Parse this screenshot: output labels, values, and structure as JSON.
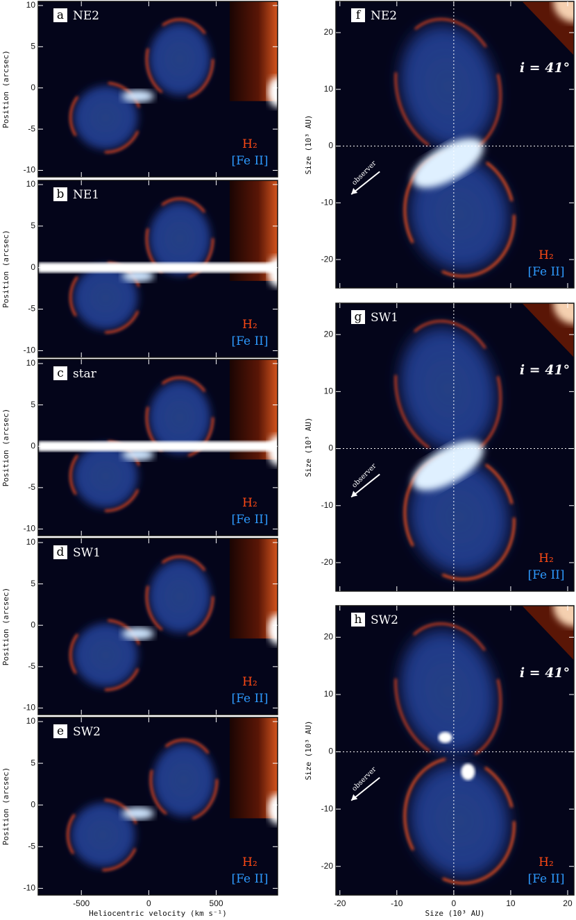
{
  "left_panels": {
    "y_label": "Position (arcsec)",
    "x_label": "Heliocentric velocity (km s⁻¹)",
    "xlim": [
      -820,
      955
    ],
    "ylim": [
      -10.8,
      10.5
    ],
    "xticks": [
      -500,
      0,
      500
    ],
    "yticks": [
      -10,
      -5,
      0,
      5,
      10
    ],
    "panels": [
      {
        "letter": "a",
        "name": "NE2"
      },
      {
        "letter": "b",
        "name": "NE1"
      },
      {
        "letter": "c",
        "name": "star"
      },
      {
        "letter": "d",
        "name": "SW1"
      },
      {
        "letter": "e",
        "name": "SW2"
      }
    ]
  },
  "right_panels": {
    "y_label": "Size (10³ AU)",
    "x_label": "Size (10³ AU)",
    "xlim": [
      -20.7,
      21.1
    ],
    "ylim": [
      -25,
      25.5
    ],
    "xticks": [
      -20,
      -10,
      0,
      10,
      20
    ],
    "yticks": [
      -20,
      -10,
      0,
      10,
      20
    ],
    "inclination": "i = 41°",
    "observer": "observer",
    "panels": [
      {
        "letter": "f",
        "name": "NE2"
      },
      {
        "letter": "g",
        "name": "SW1"
      },
      {
        "letter": "h",
        "name": "SW2"
      }
    ]
  },
  "legend": {
    "h2": "H₂",
    "fe": "[Fe II]"
  }
}
